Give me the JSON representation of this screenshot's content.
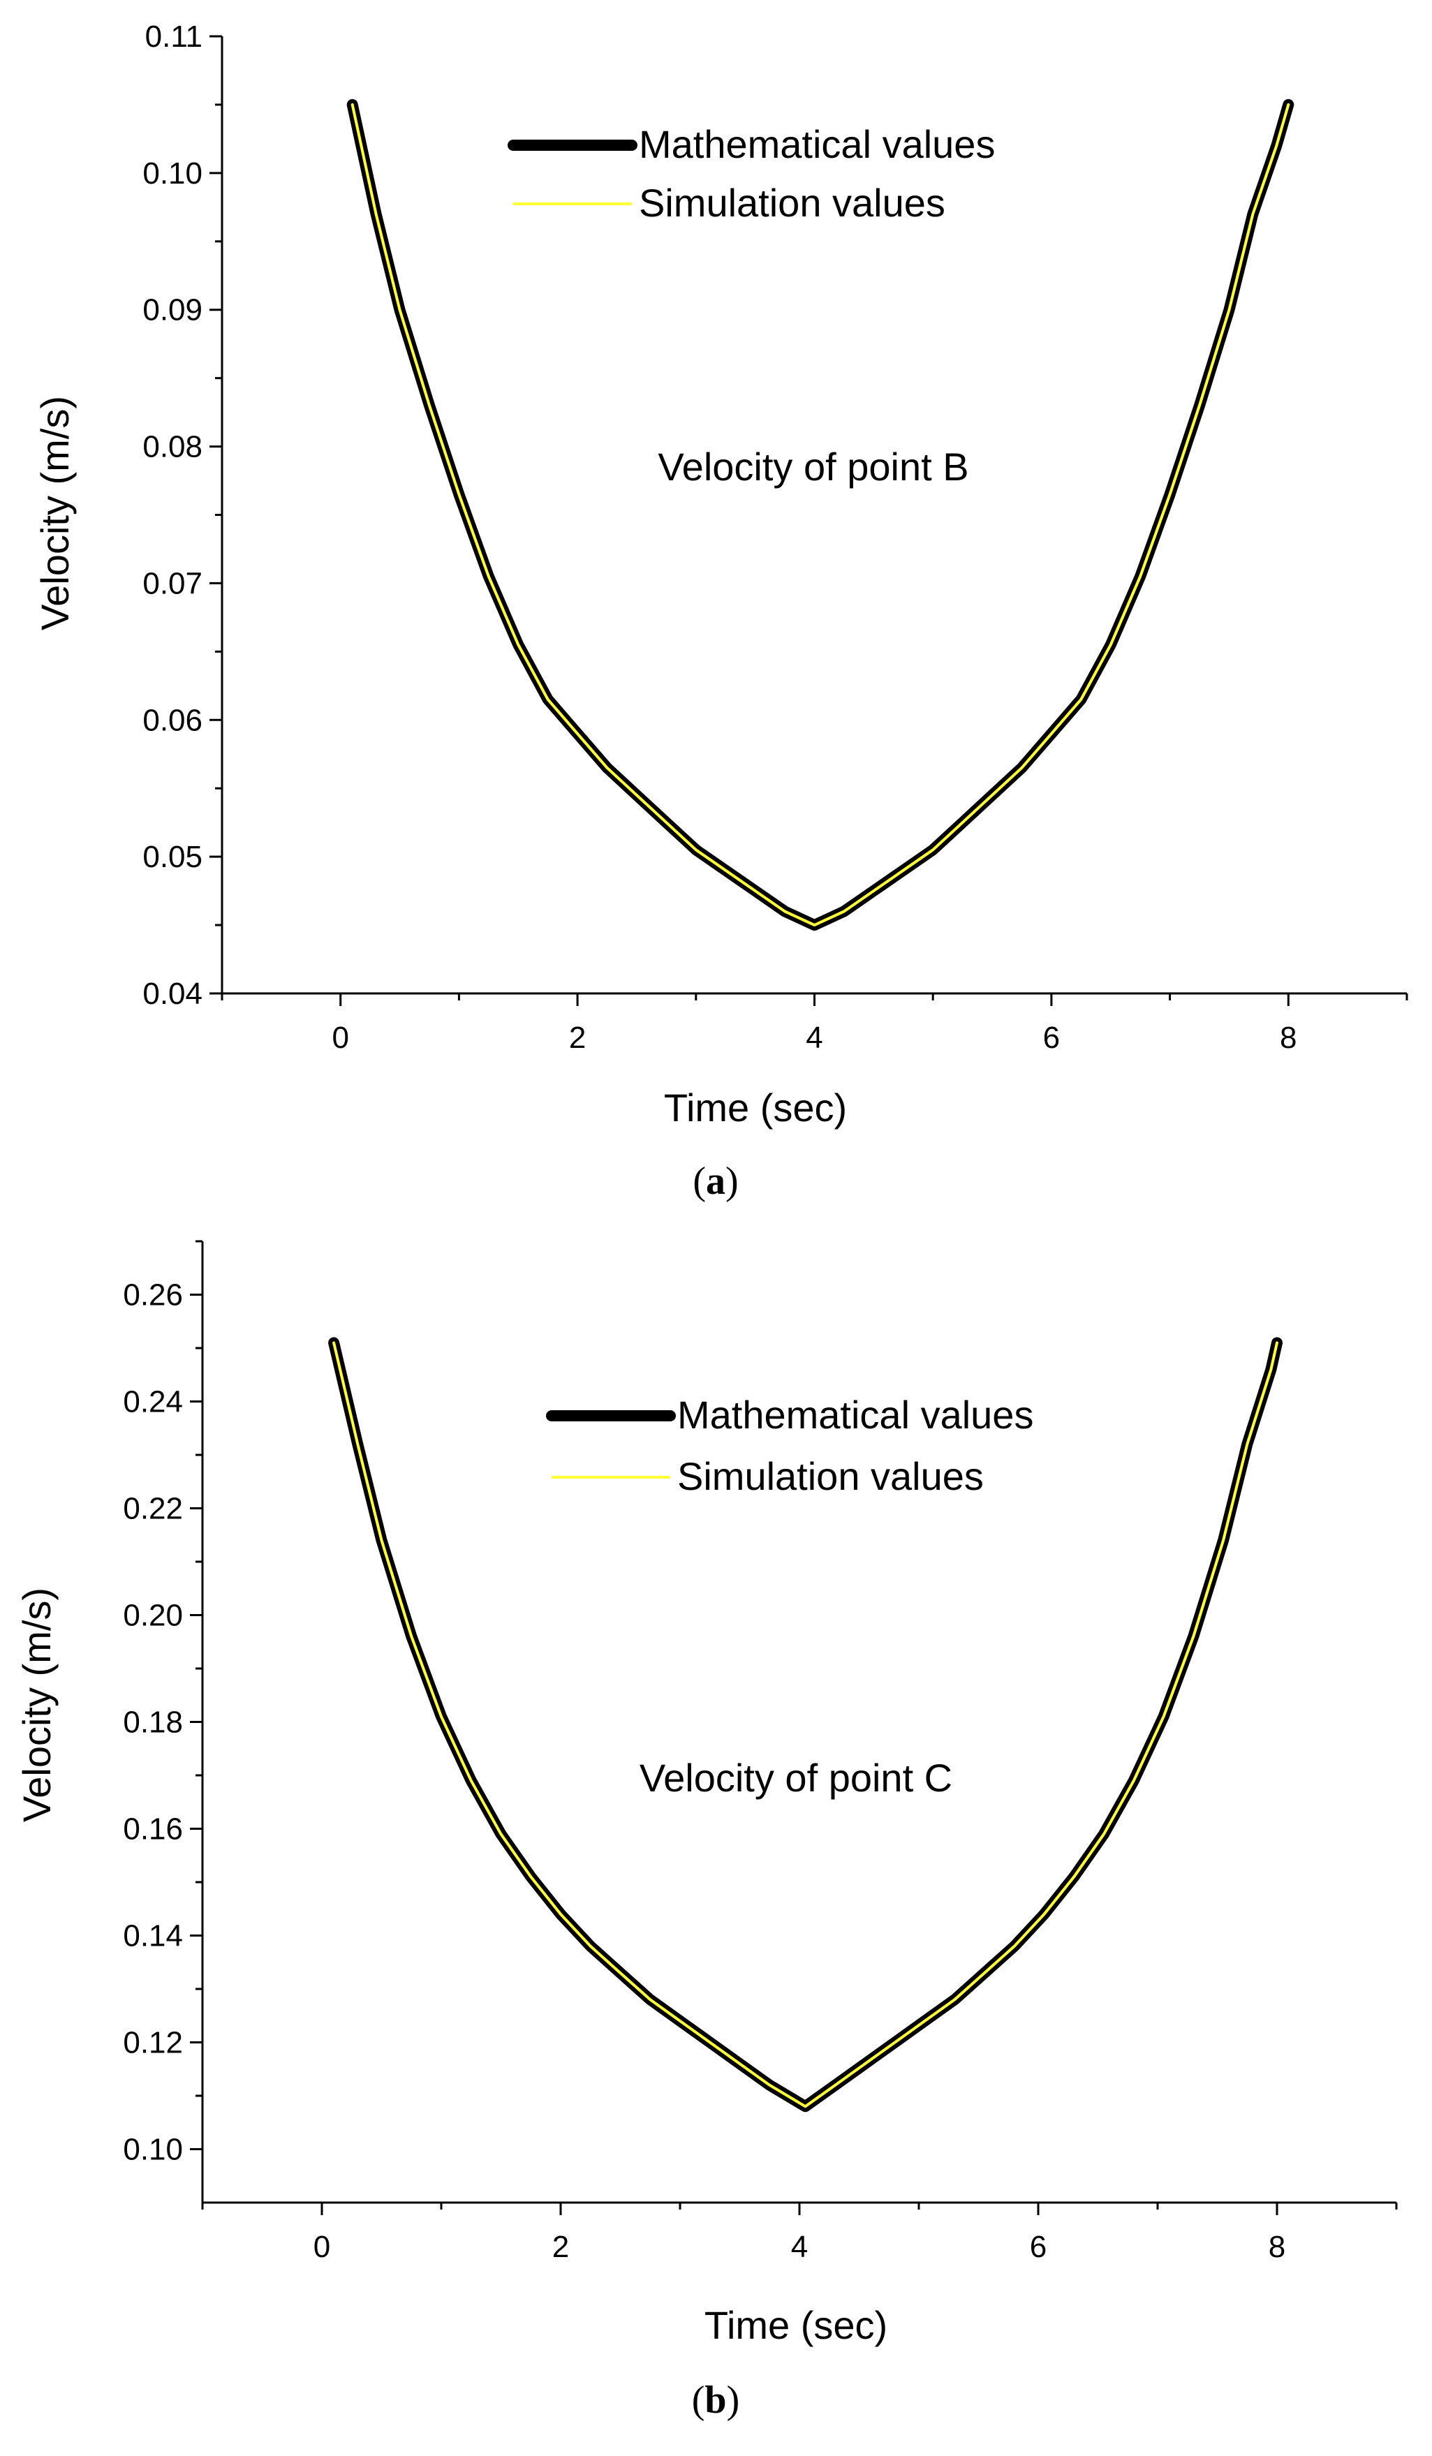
{
  "chart_data": [
    {
      "type": "line",
      "caption_letter": "a",
      "annotation": "Velocity of point B",
      "xlabel": "Time (sec)",
      "ylabel": "Velocity (m/s)",
      "xlim": [
        -1,
        9
      ],
      "ylim": [
        0.04,
        0.11
      ],
      "xticks": [
        0,
        2,
        4,
        6,
        8
      ],
      "xtick_labels": [
        "0",
        "2",
        "4",
        "6",
        "8"
      ],
      "yticks": [
        0.04,
        0.05,
        0.06,
        0.07,
        0.08,
        0.09,
        0.1,
        0.11
      ],
      "ytick_labels": [
        "0.04",
        "0.05",
        "0.06",
        "0.07",
        "0.08",
        "0.09",
        "0.10",
        "0.11"
      ],
      "legend": {
        "position": "top-center",
        "entries": [
          "Mathematical values",
          "Simulation values"
        ]
      },
      "series": [
        {
          "name": "Mathematical values",
          "color": "#000000",
          "x": [
            0.1,
            0.3,
            0.5,
            0.75,
            1.0,
            1.25,
            1.5,
            1.75,
            2.0,
            2.25,
            2.5,
            2.75,
            3.0,
            3.25,
            3.5,
            3.75,
            4.0,
            4.25,
            4.5,
            4.75,
            5.0,
            5.25,
            5.5,
            5.75,
            6.0,
            6.25,
            6.5,
            6.75,
            7.0,
            7.25,
            7.5,
            7.7,
            7.9,
            8.0
          ],
          "y": [
            0.105,
            0.097,
            0.09,
            0.083,
            0.0765,
            0.0705,
            0.0655,
            0.0615,
            0.059,
            0.0565,
            0.0545,
            0.0525,
            0.0505,
            0.049,
            0.0475,
            0.046,
            0.045,
            0.046,
            0.0475,
            0.049,
            0.0505,
            0.0525,
            0.0545,
            0.0565,
            0.059,
            0.0615,
            0.0655,
            0.0705,
            0.0765,
            0.083,
            0.09,
            0.097,
            0.102,
            0.105
          ]
        },
        {
          "name": "Simulation values",
          "color": "#ffff33",
          "x": [
            0.1,
            0.3,
            0.5,
            0.75,
            1.0,
            1.25,
            1.5,
            1.75,
            2.0,
            2.25,
            2.5,
            2.75,
            3.0,
            3.25,
            3.5,
            3.75,
            4.0,
            4.25,
            4.5,
            4.75,
            5.0,
            5.25,
            5.5,
            5.75,
            6.0,
            6.25,
            6.5,
            6.75,
            7.0,
            7.25,
            7.5,
            7.7,
            7.9,
            8.0
          ],
          "y": [
            0.105,
            0.097,
            0.09,
            0.083,
            0.0765,
            0.0705,
            0.0655,
            0.0615,
            0.059,
            0.0565,
            0.0545,
            0.0525,
            0.0505,
            0.049,
            0.0475,
            0.046,
            0.045,
            0.046,
            0.0475,
            0.049,
            0.0505,
            0.0525,
            0.0545,
            0.0565,
            0.059,
            0.0615,
            0.0655,
            0.0705,
            0.0765,
            0.083,
            0.09,
            0.097,
            0.102,
            0.105
          ]
        }
      ]
    },
    {
      "type": "line",
      "caption_letter": "b",
      "annotation": "Velocity of point C",
      "xlabel": "Time (sec)",
      "ylabel": "Velocity (m/s)",
      "xlim": [
        -1,
        9
      ],
      "ylim": [
        0.09,
        0.27
      ],
      "xticks": [
        0,
        2,
        4,
        6,
        8
      ],
      "xtick_labels": [
        "0",
        "2",
        "4",
        "6",
        "8"
      ],
      "yticks": [
        0.1,
        0.12,
        0.14,
        0.16,
        0.18,
        0.2,
        0.22,
        0.24,
        0.26
      ],
      "ytick_labels": [
        "0.10",
        "0.12",
        "0.14",
        "0.16",
        "0.18",
        "0.20",
        "0.22",
        "0.24",
        "0.26"
      ],
      "legend": {
        "position": "top-center",
        "entries": [
          "Mathematical values",
          "Simulation values"
        ]
      },
      "series": [
        {
          "name": "Mathematical values",
          "color": "#000000",
          "x": [
            0.1,
            0.3,
            0.5,
            0.75,
            1.0,
            1.25,
            1.5,
            1.75,
            2.0,
            2.25,
            2.5,
            2.75,
            3.0,
            3.25,
            3.5,
            3.75,
            4.05,
            4.3,
            4.55,
            4.8,
            5.05,
            5.3,
            5.55,
            5.8,
            6.05,
            6.3,
            6.55,
            6.8,
            7.05,
            7.3,
            7.55,
            7.75,
            7.95,
            8.0
          ],
          "y": [
            0.251,
            0.232,
            0.214,
            0.196,
            0.181,
            0.169,
            0.159,
            0.151,
            0.144,
            0.138,
            0.133,
            0.128,
            0.124,
            0.12,
            0.116,
            0.112,
            0.108,
            0.112,
            0.116,
            0.12,
            0.124,
            0.128,
            0.133,
            0.138,
            0.144,
            0.151,
            0.159,
            0.169,
            0.181,
            0.196,
            0.214,
            0.232,
            0.246,
            0.251
          ]
        },
        {
          "name": "Simulation values",
          "color": "#ffff33",
          "x": [
            0.1,
            0.3,
            0.5,
            0.75,
            1.0,
            1.25,
            1.5,
            1.75,
            2.0,
            2.25,
            2.5,
            2.75,
            3.0,
            3.25,
            3.5,
            3.75,
            4.05,
            4.3,
            4.55,
            4.8,
            5.05,
            5.3,
            5.55,
            5.8,
            6.05,
            6.3,
            6.55,
            6.8,
            7.05,
            7.3,
            7.55,
            7.75,
            7.95,
            8.0
          ],
          "y": [
            0.251,
            0.232,
            0.214,
            0.196,
            0.181,
            0.169,
            0.159,
            0.151,
            0.144,
            0.138,
            0.133,
            0.128,
            0.124,
            0.12,
            0.116,
            0.112,
            0.108,
            0.112,
            0.116,
            0.12,
            0.124,
            0.128,
            0.133,
            0.138,
            0.144,
            0.151,
            0.159,
            0.169,
            0.181,
            0.196,
            0.214,
            0.232,
            0.246,
            0.251
          ]
        }
      ]
    }
  ]
}
